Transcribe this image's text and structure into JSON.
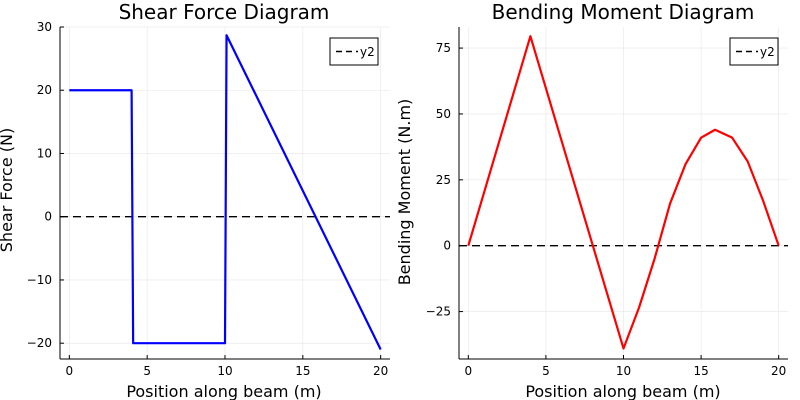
{
  "chart_data": [
    {
      "type": "line",
      "title": "Shear Force Diagram",
      "xlabel": "Position along beam (m)",
      "ylabel": "Shear Force (N)",
      "xlim": [
        -0.6,
        20.6
      ],
      "ylim": [
        -22.5,
        30
      ],
      "xticks": [
        0,
        5,
        10,
        15,
        20
      ],
      "xtick_labels": [
        "0",
        "5",
        "10",
        "15",
        "20"
      ],
      "yticks": [
        -20,
        -10,
        0,
        10,
        20,
        30
      ],
      "ytick_labels": [
        "−20",
        "−10",
        "0",
        "10",
        "20",
        "30"
      ],
      "grid": true,
      "legend_position": "top-right",
      "series": [
        {
          "name": "",
          "color": "#0000ff",
          "style": "solid",
          "x": [
            0,
            4,
            4.1,
            10,
            10.1,
            20
          ],
          "y": [
            20,
            20,
            -20,
            -20,
            28.7,
            -21
          ]
        },
        {
          "name": "y2",
          "color": "#000000",
          "style": "dashed",
          "x": [
            -0.6,
            20.6
          ],
          "y": [
            0,
            0
          ]
        }
      ]
    },
    {
      "type": "line",
      "title": "Bending Moment Diagram",
      "xlabel": "Position along beam (m)",
      "ylabel": "Bending Moment (N.m)",
      "xlim": [
        -0.6,
        20.6
      ],
      "ylim": [
        -43,
        83
      ],
      "xticks": [
        0,
        5,
        10,
        15,
        20
      ],
      "xtick_labels": [
        "0",
        "5",
        "10",
        "15",
        "20"
      ],
      "yticks": [
        -25,
        0,
        25,
        50,
        75
      ],
      "ytick_labels": [
        "−25",
        "0",
        "25",
        "50",
        "75"
      ],
      "grid": true,
      "legend_position": "top-right",
      "series": [
        {
          "name": "",
          "color": "#ff0000",
          "style": "solid",
          "x": [
            0,
            4,
            10,
            11,
            12,
            13,
            14,
            15,
            15.9,
            17,
            18,
            19,
            20
          ],
          "y": [
            0,
            79.5,
            -39,
            -23.5,
            -5,
            16,
            31,
            41,
            44,
            41,
            32,
            17,
            0
          ]
        },
        {
          "name": "y2",
          "color": "#000000",
          "style": "dashed",
          "x": [
            -0.6,
            20.6
          ],
          "y": [
            0,
            0
          ]
        }
      ]
    }
  ]
}
